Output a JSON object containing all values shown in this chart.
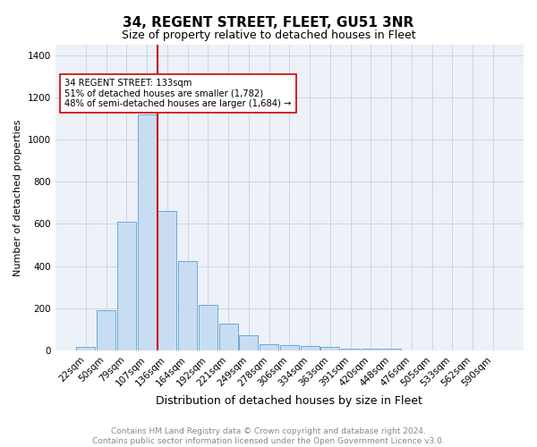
{
  "title": "34, REGENT STREET, FLEET, GU51 3NR",
  "subtitle": "Size of property relative to detached houses in Fleet",
  "xlabel": "Distribution of detached houses by size in Fleet",
  "ylabel": "Number of detached properties",
  "footer_line1": "Contains HM Land Registry data © Crown copyright and database right 2024.",
  "footer_line2": "Contains public sector information licensed under the Open Government Licence v3.0.",
  "bar_labels": [
    "22sqm",
    "50sqm",
    "79sqm",
    "107sqm",
    "136sqm",
    "164sqm",
    "192sqm",
    "221sqm",
    "249sqm",
    "278sqm",
    "306sqm",
    "334sqm",
    "363sqm",
    "391sqm",
    "420sqm",
    "448sqm",
    "476sqm",
    "505sqm",
    "533sqm",
    "562sqm",
    "590sqm"
  ],
  "bar_values": [
    18,
    190,
    610,
    1120,
    660,
    425,
    215,
    125,
    70,
    28,
    25,
    22,
    15,
    10,
    10,
    10,
    0,
    0,
    0,
    0,
    0
  ],
  "bar_color": "#c9ddf2",
  "bar_edge_color": "#6aabd6",
  "grid_color": "#cdd6e8",
  "background_color": "#edf1f8",
  "red_line_color": "#cc0000",
  "red_line_index": 3.5,
  "annotation_text": "34 REGENT STREET: 133sqm\n51% of detached houses are smaller (1,782)\n48% of semi-detached houses are larger (1,684) →",
  "annotation_box_edge": "#cc0000",
  "ylim": [
    0,
    1450
  ],
  "yticks": [
    0,
    200,
    400,
    600,
    800,
    1000,
    1200,
    1400
  ],
  "title_fontsize": 11,
  "subtitle_fontsize": 9,
  "ylabel_fontsize": 8,
  "xlabel_fontsize": 9,
  "tick_fontsize": 7.5,
  "footer_fontsize": 6.5,
  "footer_color": "#888888"
}
